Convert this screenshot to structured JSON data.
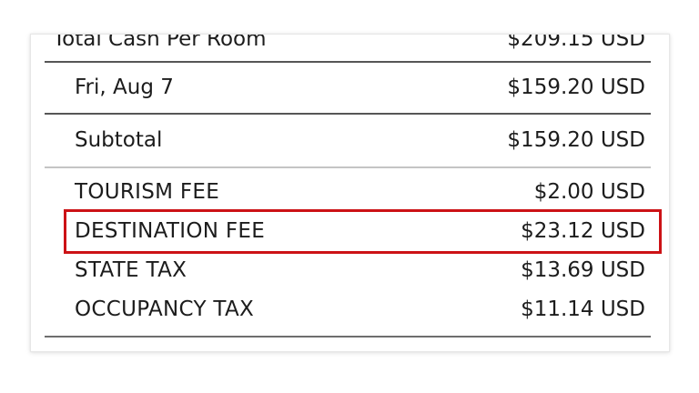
{
  "colors": {
    "text": "#1c1c1c",
    "card_border": "#e7e7e7",
    "divider_dark": "#565656",
    "divider_light": "#c4c4c4",
    "divider_bottom": "#6e6e6e",
    "highlight_red": "#cc1216"
  },
  "price_breakdown": {
    "total_row": {
      "label": "Total Cash Per Room",
      "amount": "$209.15 USD"
    },
    "date_row": {
      "label": "Fri, Aug 7",
      "amount": "$159.20 USD"
    },
    "subtotal_row": {
      "label": "Subtotal",
      "amount": "$159.20 USD"
    },
    "fee_rows": [
      {
        "label": "TOURISM FEE",
        "amount": "$2.00 USD"
      },
      {
        "label": "DESTINATION FEE",
        "amount": "$23.12 USD"
      },
      {
        "label": "STATE TAX",
        "amount": "$13.69 USD"
      },
      {
        "label": "OCCUPANCY TAX",
        "amount": "$11.14 USD"
      }
    ],
    "highlighted_fee": "DESTINATION FEE"
  }
}
